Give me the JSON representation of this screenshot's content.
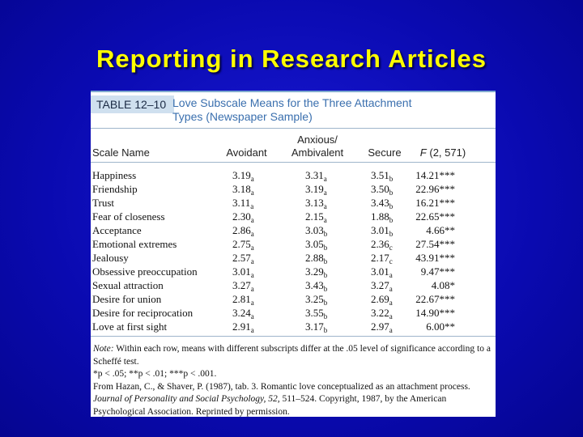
{
  "title": "Reporting in Research Articles",
  "table": {
    "label": "TABLE 12–10",
    "caption": "Love Subscale Means for the Three Attachment Types (Newspaper Sample)",
    "columns": [
      "Scale Name",
      "Avoidant",
      "Anxious/ Ambivalent",
      "Secure"
    ],
    "f_header": {
      "symbol": "F",
      "df": "(2, 571)"
    },
    "rows": [
      {
        "label": "Happiness",
        "means": [
          {
            "m": "3.19",
            "s": "a"
          },
          {
            "m": "3.31",
            "s": "a"
          },
          {
            "m": "3.51",
            "s": "b"
          }
        ],
        "f": "14.21***"
      },
      {
        "label": "Friendship",
        "means": [
          {
            "m": "3.18",
            "s": "a"
          },
          {
            "m": "3.19",
            "s": "a"
          },
          {
            "m": "3.50",
            "s": "b"
          }
        ],
        "f": "22.96***"
      },
      {
        "label": "Trust",
        "means": [
          {
            "m": "3.11",
            "s": "a"
          },
          {
            "m": "3.13",
            "s": "a"
          },
          {
            "m": "3.43",
            "s": "b"
          }
        ],
        "f": "16.21***"
      },
      {
        "label": "Fear of closeness",
        "means": [
          {
            "m": "2.30",
            "s": "a"
          },
          {
            "m": "2.15",
            "s": "a"
          },
          {
            "m": "1.88",
            "s": "b"
          }
        ],
        "f": "22.65***"
      },
      {
        "label": "Acceptance",
        "means": [
          {
            "m": "2.86",
            "s": "a"
          },
          {
            "m": "3.03",
            "s": "b"
          },
          {
            "m": "3.01",
            "s": "b"
          }
        ],
        "f": "4.66**"
      },
      {
        "label": "Emotional extremes",
        "means": [
          {
            "m": "2.75",
            "s": "a"
          },
          {
            "m": "3.05",
            "s": "b"
          },
          {
            "m": "2.36",
            "s": "c"
          }
        ],
        "f": "27.54***"
      },
      {
        "label": "Jealousy",
        "means": [
          {
            "m": "2.57",
            "s": "a"
          },
          {
            "m": "2.88",
            "s": "b"
          },
          {
            "m": "2.17",
            "s": "c"
          }
        ],
        "f": "43.91***"
      },
      {
        "label": "Obsessive preoccupation",
        "means": [
          {
            "m": "3.01",
            "s": "a"
          },
          {
            "m": "3.29",
            "s": "b"
          },
          {
            "m": "3.01",
            "s": "a"
          }
        ],
        "f": "9.47***"
      },
      {
        "label": "Sexual attraction",
        "means": [
          {
            "m": "3.27",
            "s": "a"
          },
          {
            "m": "3.43",
            "s": "b"
          },
          {
            "m": "3.27",
            "s": "a"
          }
        ],
        "f": "4.08*"
      },
      {
        "label": "Desire for union",
        "means": [
          {
            "m": "2.81",
            "s": "a"
          },
          {
            "m": "3.25",
            "s": "b"
          },
          {
            "m": "2.69",
            "s": "a"
          }
        ],
        "f": "22.67***"
      },
      {
        "label": "Desire for reciprocation",
        "means": [
          {
            "m": "3.24",
            "s": "a"
          },
          {
            "m": "3.55",
            "s": "b"
          },
          {
            "m": "3.22",
            "s": "a"
          }
        ],
        "f": "14.90***"
      },
      {
        "label": "Love at first sight",
        "means": [
          {
            "m": "2.91",
            "s": "a"
          },
          {
            "m": "3.17",
            "s": "b"
          },
          {
            "m": "2.97",
            "s": "a"
          }
        ],
        "f": "6.00**"
      }
    ]
  },
  "notes": {
    "note_label": "Note:",
    "note_text": "Within each row, means with different subscripts differ at the .05 level of significance according to a Scheffé test.",
    "significance": "*p < .05; **p < .01; ***p < .001.",
    "source_pre": "From Hazan, C., & Shaver, P. (1987), tab. 3. Romantic love conceptualized as an attachment process.",
    "source_journal": "Journal of Personality and Social Psychology, 52,",
    "source_post": " 511–524. Copyright, 1987, by the American Psychological Association. Reprinted by permission."
  }
}
